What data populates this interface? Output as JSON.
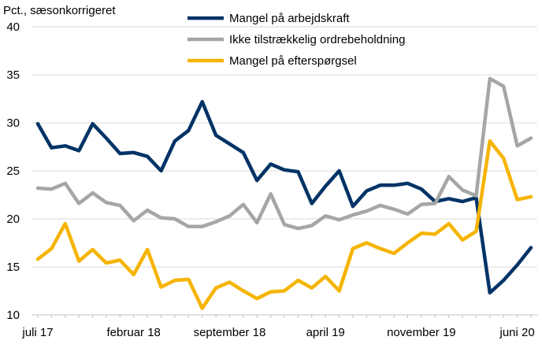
{
  "chart_data": {
    "type": "line",
    "title": "",
    "ylabel": "Pct., sæsonkorrigeret",
    "xlabel": "",
    "ylim": [
      10,
      40
    ],
    "yticks": [
      10,
      15,
      20,
      25,
      30,
      35,
      40
    ],
    "x_labels": [
      {
        "index": 0,
        "label": "juli 17"
      },
      {
        "index": 7,
        "label": "februar 18"
      },
      {
        "index": 14,
        "label": "september 18"
      },
      {
        "index": 21,
        "label": "april 19"
      },
      {
        "index": 28,
        "label": "november 19"
      },
      {
        "index": 35,
        "label": "juni 20"
      }
    ],
    "grid": "horizontal",
    "legend_position": "top",
    "series": [
      {
        "name": "Mangel på arbejdskraft",
        "color": "#003366",
        "values": [
          29.9,
          27.4,
          27.6,
          27.1,
          29.9,
          28.4,
          26.8,
          26.9,
          26.5,
          25.0,
          28.1,
          29.2,
          32.2,
          28.7,
          27.8,
          26.9,
          24.0,
          25.7,
          25.1,
          24.9,
          21.6,
          23.4,
          25.0,
          21.3,
          22.9,
          23.5,
          23.5,
          23.7,
          23.1,
          21.8,
          22.1,
          21.8,
          22.2,
          12.3,
          13.6,
          15.2,
          17.0
        ]
      },
      {
        "name": "Ikke tilstrækkelig ordrebeholdning",
        "color": "#a6a6a6",
        "values": [
          23.2,
          23.1,
          23.7,
          21.6,
          22.7,
          21.7,
          21.4,
          19.8,
          20.9,
          20.1,
          20.0,
          19.2,
          19.2,
          19.7,
          20.3,
          21.5,
          19.6,
          22.6,
          19.4,
          19.0,
          19.3,
          20.3,
          19.9,
          20.4,
          20.8,
          21.4,
          21.0,
          20.5,
          21.5,
          21.6,
          24.4,
          23.0,
          22.4,
          34.6,
          33.8,
          27.6,
          28.4
        ]
      },
      {
        "name": "Mangel på efterspørgsel",
        "color": "#f5b400",
        "values": [
          15.8,
          16.9,
          19.5,
          15.6,
          16.8,
          15.4,
          15.7,
          14.2,
          16.8,
          12.9,
          13.6,
          13.7,
          10.7,
          12.8,
          13.4,
          12.5,
          11.7,
          12.4,
          12.5,
          13.6,
          12.8,
          14.0,
          12.5,
          16.9,
          17.5,
          16.9,
          16.4,
          17.5,
          18.5,
          18.4,
          19.5,
          17.8,
          18.7,
          28.1,
          26.3,
          22.0,
          22.3
        ]
      }
    ]
  }
}
